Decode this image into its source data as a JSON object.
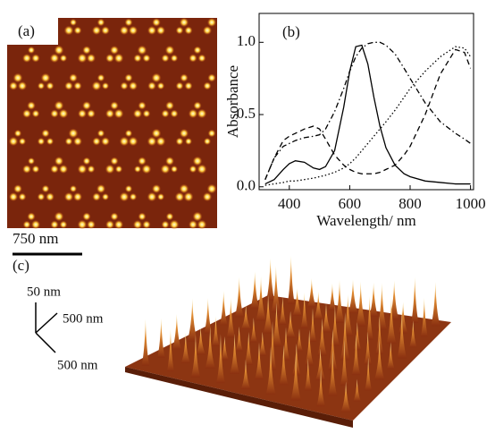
{
  "panel_a": {
    "label": "(a)",
    "scale_bar": "750 nm"
  },
  "chart_data": {
    "type": "line",
    "title": "(b)",
    "x_label": "Wavelength/ nm",
    "y_label": "Absorbance",
    "x": [
      320,
      350,
      380,
      400,
      420,
      450,
      480,
      500,
      520,
      550,
      580,
      600,
      620,
      640,
      660,
      680,
      700,
      720,
      750,
      780,
      800,
      850,
      900,
      950,
      980,
      1000
    ],
    "series": [
      {
        "color": "#000000",
        "dash": "solid",
        "values": [
          0.02,
          0.05,
          0.12,
          0.16,
          0.18,
          0.17,
          0.13,
          0.12,
          0.14,
          0.25,
          0.55,
          0.8,
          0.97,
          0.98,
          0.85,
          0.62,
          0.42,
          0.27,
          0.15,
          0.09,
          0.07,
          0.04,
          0.03,
          0.02,
          0.02,
          0.02
        ]
      },
      {
        "color": "#000000",
        "dash": "dash-dot",
        "values": [
          0.05,
          0.2,
          0.28,
          0.3,
          0.32,
          0.34,
          0.35,
          0.36,
          0.4,
          0.52,
          0.68,
          0.8,
          0.9,
          0.96,
          0.99,
          1.0,
          1.0,
          0.98,
          0.92,
          0.82,
          0.75,
          0.58,
          0.45,
          0.37,
          0.33,
          0.3
        ]
      },
      {
        "color": "#000000",
        "dash": "dashed",
        "values": [
          0.05,
          0.2,
          0.32,
          0.35,
          0.37,
          0.4,
          0.42,
          0.4,
          0.33,
          0.22,
          0.15,
          0.12,
          0.1,
          0.09,
          0.09,
          0.09,
          0.1,
          0.12,
          0.15,
          0.22,
          0.28,
          0.5,
          0.78,
          0.95,
          0.93,
          0.82
        ]
      },
      {
        "color": "#000000",
        "dash": "dotted",
        "values": [
          0.01,
          0.02,
          0.03,
          0.04,
          0.04,
          0.05,
          0.06,
          0.07,
          0.08,
          0.1,
          0.13,
          0.16,
          0.2,
          0.25,
          0.3,
          0.35,
          0.4,
          0.45,
          0.53,
          0.62,
          0.68,
          0.8,
          0.9,
          0.97,
          0.96,
          0.9
        ]
      }
    ],
    "xlim": [
      300,
      1010
    ],
    "xticks": [
      400,
      600,
      800,
      1000
    ],
    "ylim": [
      -0.02,
      1.2
    ],
    "yticks": [
      {
        "value": 0,
        "label": "0.0"
      },
      {
        "value": 0.5,
        "label": "0.5"
      },
      {
        "value": 1,
        "label": "1.0"
      }
    ]
  },
  "panel_c": {
    "label": "(c)",
    "z_axis": "50 nm",
    "y_axis": "500 nm",
    "x_axis": "500 nm"
  }
}
